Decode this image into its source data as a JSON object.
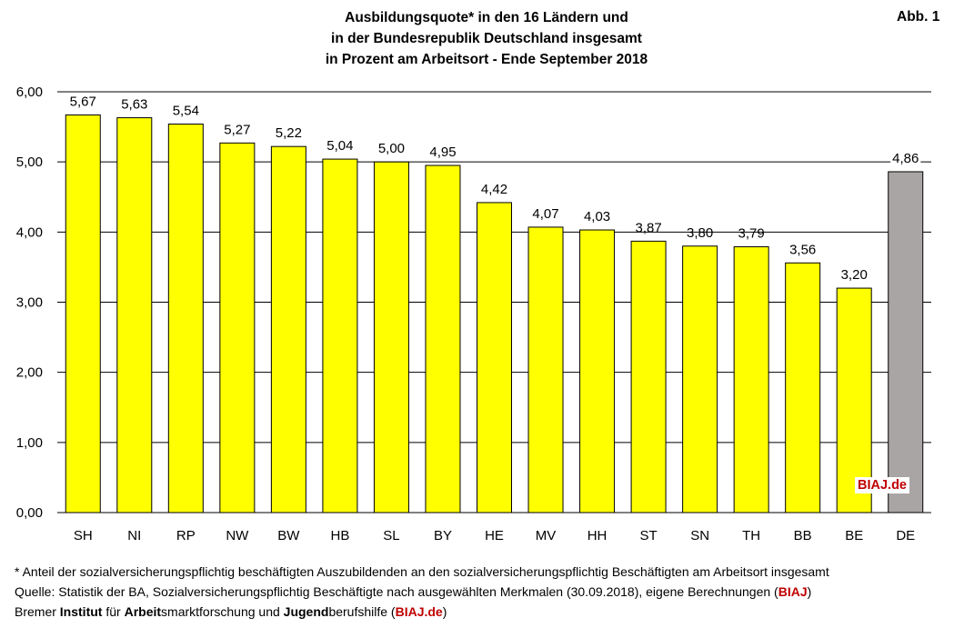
{
  "chart_data": {
    "type": "bar",
    "title_lines": [
      "Ausbildungsquote* in den 16 Ländern und",
      "in der Bundesrepublik Deutschland insgesamt",
      "in Prozent am Arbeitsort - Ende September 2018"
    ],
    "figure_label": "Abb. 1",
    "categories": [
      "SH",
      "NI",
      "RP",
      "NW",
      "BW",
      "HB",
      "SL",
      "BY",
      "HE",
      "MV",
      "HH",
      "ST",
      "SN",
      "TH",
      "BB",
      "BE",
      "DE"
    ],
    "values": [
      5.67,
      5.63,
      5.54,
      5.27,
      5.22,
      5.04,
      5.0,
      4.95,
      4.42,
      4.07,
      4.03,
      3.87,
      3.8,
      3.79,
      3.56,
      3.2,
      4.86
    ],
    "value_labels": [
      "5,67",
      "5,63",
      "5,54",
      "5,27",
      "5,22",
      "5,04",
      "5,00",
      "4,95",
      "4,42",
      "4,07",
      "4,03",
      "3,87",
      "3,80",
      "3,79",
      "3,56",
      "3,20",
      "4,86"
    ],
    "y_ticks": [
      0,
      1,
      2,
      3,
      4,
      5,
      6
    ],
    "y_tick_labels": [
      "0,00",
      "1,00",
      "2,00",
      "3,00",
      "4,00",
      "5,00",
      "6,00"
    ],
    "ylim": [
      0,
      6
    ],
    "grid": true,
    "legend": "none",
    "colors": {
      "bar": "#ffff00",
      "highlight_bar": "#aaa5a5",
      "bar_edge": "#000000",
      "accent": "#c00000"
    },
    "highlight_category": "DE",
    "watermark": "BIAJ.de"
  },
  "footnotes": {
    "note": "* Anteil der sozialversicherungspflichtig beschäftigten Auszubildenden an den sozialversicherungspflichtig Beschäftigten am Arbeitsort insgesamt",
    "source_prefix": "Quelle: Statistik der BA, Sozialversicherungspflichtig Beschäftigte nach ausgewählten Merkmalen (30.09.2018), eigene Berechnungen (",
    "source_brand": "BIAJ",
    "source_suffix": ")",
    "org_1": "Bremer ",
    "org_2": "Institut",
    "org_3": " für ",
    "org_4": "Arbeit",
    "org_5": "smarktforschung und ",
    "org_6": "Jugend",
    "org_7": "berufshilfe (",
    "org_brand": "BIAJ.de",
    "org_8": ")"
  }
}
